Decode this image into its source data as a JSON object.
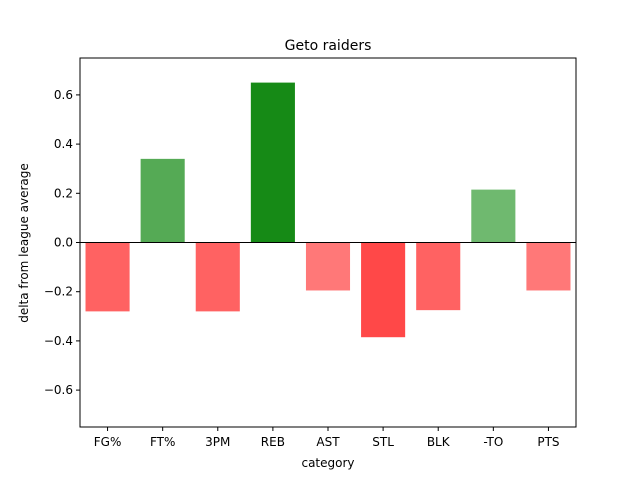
{
  "chart_data": {
    "type": "bar",
    "title": "Geto raiders",
    "xlabel": "category",
    "ylabel": "delta from league average",
    "categories": [
      "FG%",
      "FT%",
      "3PM",
      "REB",
      "AST",
      "STL",
      "BLK",
      "-TO",
      "PTS"
    ],
    "values": [
      -0.28,
      0.34,
      -0.28,
      0.65,
      -0.195,
      -0.385,
      -0.275,
      0.215,
      -0.195
    ],
    "bar_colors": [
      "#ff6262",
      "#55aa55",
      "#ff6262",
      "#168a16",
      "#ff7878",
      "#ff4848",
      "#ff6262",
      "#6fb96f",
      "#ff7878"
    ],
    "ylim": [
      -0.75,
      0.75
    ],
    "yticks": [
      -0.6,
      -0.4,
      -0.2,
      0.0,
      0.2,
      0.4,
      0.6
    ],
    "ytick_labels": [
      "−0.6",
      "−0.4",
      "−0.2",
      "0.0",
      "0.2",
      "0.4",
      "0.6"
    ],
    "zero_line": true,
    "grid": false,
    "legend": "none"
  }
}
